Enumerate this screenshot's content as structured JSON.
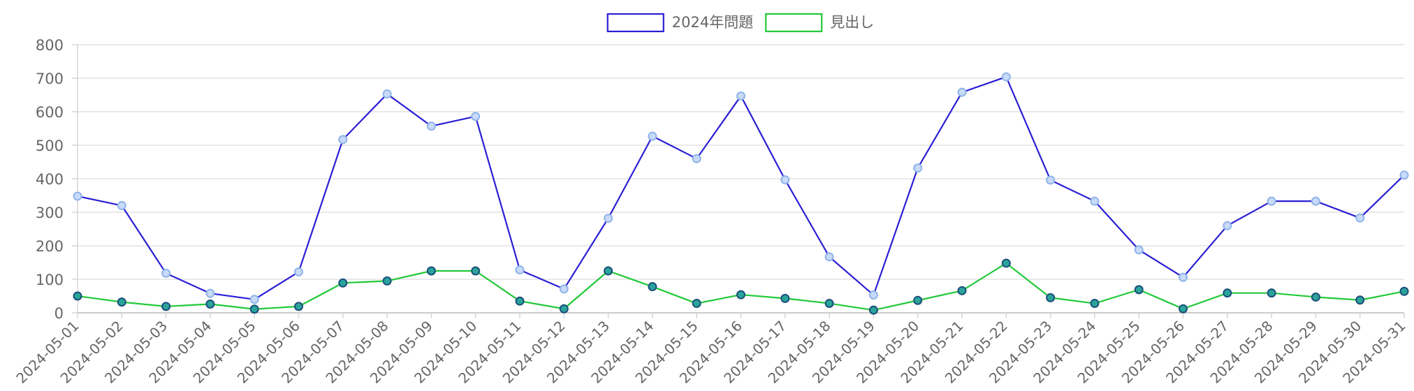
{
  "chart_data": {
    "type": "line",
    "title": "",
    "xlabel": "",
    "ylabel": "",
    "ylim": [
      0,
      800
    ],
    "y_ticks": [
      "0",
      "100",
      "200",
      "300",
      "400",
      "500",
      "600",
      "700",
      "800"
    ],
    "grid": true,
    "legend_position": "top-center",
    "x": [
      "2024-05-01",
      "2024-05-02",
      "2024-05-03",
      "2024-05-04",
      "2024-05-05",
      "2024-05-06",
      "2024-05-07",
      "2024-05-08",
      "2024-05-09",
      "2024-05-10",
      "2024-05-11",
      "2024-05-12",
      "2024-05-13",
      "2024-05-14",
      "2024-05-15",
      "2024-05-16",
      "2024-05-17",
      "2024-05-18",
      "2024-05-19",
      "2024-05-20",
      "2024-05-21",
      "2024-05-22",
      "2024-05-23",
      "2024-05-24",
      "2024-05-25",
      "2024-05-26",
      "2024-05-27",
      "2024-05-28",
      "2024-05-29",
      "2024-05-30",
      "2024-05-31"
    ],
    "series": [
      {
        "name": "2024年問題",
        "color": "#2b1fd4",
        "marker_fill": "#c8daf7",
        "marker_stroke": "#8fb4ea",
        "values": [
          348,
          320,
          118,
          58,
          40,
          122,
          517,
          653,
          557,
          586,
          128,
          71,
          282,
          527,
          460,
          647,
          397,
          167,
          53,
          432,
          658,
          704,
          396,
          333,
          188,
          106,
          260,
          333,
          333,
          283,
          411
        ]
      },
      {
        "name": "見出し",
        "color": "#22c93a",
        "marker_fill": "#2aa39a",
        "marker_stroke": "#1b4f7a",
        "values": [
          50,
          32,
          19,
          26,
          11,
          19,
          89,
          95,
          125,
          125,
          35,
          12,
          125,
          78,
          28,
          54,
          43,
          28,
          8,
          37,
          66,
          148,
          45,
          28,
          69,
          12,
          59,
          59,
          47,
          38,
          64
        ]
      }
    ]
  }
}
